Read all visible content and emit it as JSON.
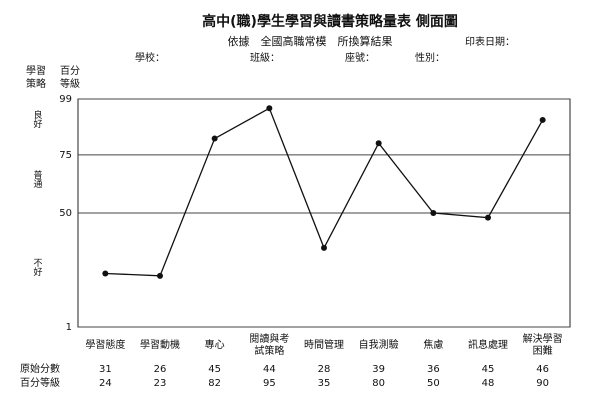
{
  "chart_data": {
    "type": "line",
    "title": "高中(職)學生學習與讀書策略量表 側面圖",
    "subtitle": "依據　全國高職常模　所換算結果",
    "print_date_label": "印表日期：",
    "info_fields": [
      "學校：",
      "班級：",
      "座號：",
      "性別："
    ],
    "row_header": [
      "學習",
      "策略"
    ],
    "scale_header": [
      "百分",
      "等級"
    ],
    "band_labels": [
      "良好",
      "普通",
      "不好"
    ],
    "categories": [
      [
        "學習態度"
      ],
      [
        "學習動機"
      ],
      [
        "專心"
      ],
      [
        "閱讀與考",
        "試策略"
      ],
      [
        "時間管理"
      ],
      [
        "自我測驗"
      ],
      [
        "焦慮"
      ],
      [
        "訊息處理"
      ],
      [
        "解決學習",
        "困難"
      ]
    ],
    "raw_scores": {
      "name": "原始分數",
      "values": [
        31,
        26,
        45,
        44,
        28,
        39,
        36,
        45,
        46
      ]
    },
    "series": [
      {
        "name": "百分等級",
        "color": "#111111",
        "values": [
          24,
          23,
          82,
          95,
          35,
          80,
          50,
          48,
          90
        ]
      }
    ],
    "ylim": [
      1,
      99
    ],
    "yticks": [
      99,
      75,
      50,
      1
    ],
    "grid": true
  }
}
